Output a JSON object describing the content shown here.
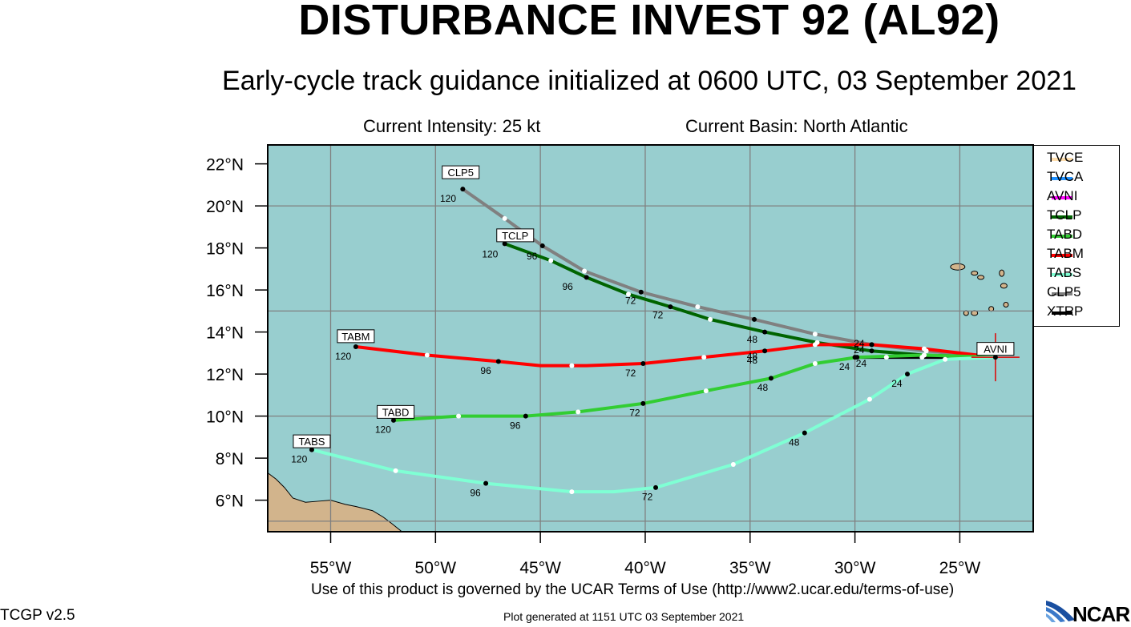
{
  "title": "DISTURBANCE INVEST 92 (AL92)",
  "subtitle": "Early-cycle track guidance initialized at 0600 UTC, 03 September 2021",
  "current_intensity": "Current Intensity: 25 kt",
  "current_basin": "Current Basin: North Atlantic",
  "terms": "Use of this product is governed by the UCAR Terms of Use (http://www2.ucar.edu/terms-of-use)",
  "generated": "Plot generated at 1151 UTC   03 September 2021",
  "version": "TCGP v2.5",
  "ncar": "NCAR",
  "colors": {
    "ocean": "#98cecf",
    "land": "#d2b48c",
    "grid": "#808080"
  },
  "chart_data": {
    "type": "line",
    "xlim": [
      -58,
      -21.5
    ],
    "ylim": [
      4.5,
      22.9
    ],
    "x_ticks": [
      {
        "value": -55,
        "label": "55°W"
      },
      {
        "value": -50,
        "label": "50°W"
      },
      {
        "value": -45,
        "label": "45°W"
      },
      {
        "value": -40,
        "label": "40°W"
      },
      {
        "value": -35,
        "label": "35°W"
      },
      {
        "value": -30,
        "label": "30°W"
      },
      {
        "value": -25,
        "label": "25°W"
      }
    ],
    "y_ticks": [
      {
        "value": 22,
        "label": "22°N"
      },
      {
        "value": 20,
        "label": "20°N"
      },
      {
        "value": 18,
        "label": "18°N"
      },
      {
        "value": 16,
        "label": "16°N"
      },
      {
        "value": 14,
        "label": "14°N"
      },
      {
        "value": 12,
        "label": "12°N"
      },
      {
        "value": 10,
        "label": "10°N"
      },
      {
        "value": 8,
        "label": "8°N"
      },
      {
        "value": 6,
        "label": "6°N"
      }
    ],
    "grid_lon": [
      -55,
      -50,
      -45,
      -40,
      -35,
      -30,
      -25
    ],
    "grid_lat": [
      20,
      15,
      10,
      5
    ],
    "current_position": {
      "lon": -23.3,
      "lat": 12.8
    },
    "legend": [
      {
        "name": "TVCE",
        "color": "#ffdead"
      },
      {
        "name": "TVCA",
        "color": "#1e90ff"
      },
      {
        "name": "AVNI",
        "color": "#ff00ff"
      },
      {
        "name": "TCLP",
        "color": "#006400"
      },
      {
        "name": "TABD",
        "color": "#32cd32"
      },
      {
        "name": "TABM",
        "color": "#ff0000"
      },
      {
        "name": "TABS",
        "color": "#7fffd4"
      },
      {
        "name": "CLP5",
        "color": "#808080"
      },
      {
        "name": "XTRP",
        "color": "#000000"
      }
    ],
    "series": [
      {
        "name": "XTRP",
        "color": "#000000",
        "points": [
          [
            -23.3,
            12.8
          ],
          [
            -25.1,
            12.8
          ],
          [
            -26.8,
            12.8
          ],
          [
            -28.5,
            12.8
          ],
          [
            -30.0,
            12.8
          ]
        ],
        "dots": [
          [
            -26.8,
            12.8,
            "w"
          ],
          [
            -28.5,
            12.8,
            "w"
          ],
          [
            -30.0,
            12.8,
            "b"
          ]
        ],
        "labels": []
      },
      {
        "name": "CLP5",
        "color": "#808080",
        "points": [
          [
            -23.3,
            12.8
          ],
          [
            -26.6,
            13.1
          ],
          [
            -29.2,
            13.4
          ],
          [
            -31.9,
            13.9
          ],
          [
            -34.8,
            14.6
          ],
          [
            -37.5,
            15.2
          ],
          [
            -40.2,
            15.9
          ],
          [
            -42.9,
            16.9
          ],
          [
            -44.9,
            18.1
          ],
          [
            -46.7,
            19.4
          ],
          [
            -48.7,
            20.8
          ]
        ],
        "dots": [
          [
            -26.6,
            13.1,
            "w"
          ],
          [
            -29.2,
            13.4,
            "b"
          ],
          [
            -31.9,
            13.9,
            "w"
          ],
          [
            -34.8,
            14.6,
            "b"
          ],
          [
            -37.5,
            15.2,
            "w"
          ],
          [
            -40.2,
            15.9,
            "b"
          ],
          [
            -42.9,
            16.9,
            "w"
          ],
          [
            -44.9,
            18.1,
            "b"
          ],
          [
            -46.7,
            19.4,
            "w"
          ],
          [
            -48.7,
            20.8,
            "b"
          ]
        ],
        "labels": [
          [
            -49.4,
            20.35,
            "120"
          ],
          [
            -34.9,
            13.65,
            "48"
          ],
          [
            -40.7,
            15.5,
            "72"
          ]
        ],
        "box": {
          "text": "CLP5",
          "lon": -48.8,
          "lat": 21.6
        }
      },
      {
        "name": "TCLP",
        "color": "#006400",
        "points": [
          [
            -23.3,
            12.8
          ],
          [
            -26.7,
            12.9
          ],
          [
            -29.2,
            13.1
          ],
          [
            -31.8,
            13.5
          ],
          [
            -34.3,
            14.0
          ],
          [
            -36.9,
            14.6
          ],
          [
            -38.8,
            15.2
          ],
          [
            -40.8,
            15.8
          ],
          [
            -42.8,
            16.6
          ],
          [
            -44.5,
            17.4
          ],
          [
            -46.7,
            18.2
          ]
        ],
        "dots": [
          [
            -26.7,
            12.9,
            "w"
          ],
          [
            -29.2,
            13.1,
            "b"
          ],
          [
            -31.8,
            13.5,
            "w"
          ],
          [
            -34.3,
            14.0,
            "b"
          ],
          [
            -36.9,
            14.6,
            "w"
          ],
          [
            -38.8,
            15.2,
            "b"
          ],
          [
            -40.8,
            15.8,
            "w"
          ],
          [
            -42.8,
            16.6,
            "b"
          ],
          [
            -44.5,
            17.4,
            "w"
          ],
          [
            -46.7,
            18.2,
            "b"
          ]
        ],
        "labels": [
          [
            -47.4,
            17.7,
            "120"
          ],
          [
            -45.4,
            17.6,
            "96"
          ],
          [
            -43.7,
            16.15,
            "96"
          ],
          [
            -39.4,
            14.8,
            "72"
          ],
          [
            -34.9,
            12.85,
            "48"
          ],
          [
            -29.8,
            13.15,
            "24"
          ]
        ],
        "box": {
          "text": "TCLP",
          "lon": -46.2,
          "lat": 18.6
        }
      },
      {
        "name": "TABM",
        "color": "#ff0000",
        "points": [
          [
            -23.3,
            12.8
          ],
          [
            -26.7,
            13.2
          ],
          [
            -29.2,
            13.4
          ],
          [
            -31.9,
            13.4
          ],
          [
            -34.3,
            13.1
          ],
          [
            -37.2,
            12.8
          ],
          [
            -40.1,
            12.5
          ],
          [
            -42.8,
            12.4
          ],
          [
            -45.0,
            12.4
          ],
          [
            -47.0,
            12.6
          ],
          [
            -50.4,
            12.9
          ],
          [
            -53.8,
            13.3
          ]
        ],
        "dots": [
          [
            -26.7,
            13.2,
            "w"
          ],
          [
            -29.2,
            13.4,
            "b"
          ],
          [
            -31.9,
            13.4,
            "w"
          ],
          [
            -34.3,
            13.1,
            "b"
          ],
          [
            -37.2,
            12.8,
            "w"
          ],
          [
            -40.1,
            12.5,
            "b"
          ],
          [
            -43.5,
            12.4,
            "w"
          ],
          [
            -47.0,
            12.6,
            "b"
          ],
          [
            -50.4,
            12.9,
            "w"
          ],
          [
            -53.8,
            13.3,
            "b"
          ]
        ],
        "labels": [
          [
            -54.4,
            12.85,
            "120"
          ],
          [
            -47.6,
            12.15,
            "96"
          ],
          [
            -40.7,
            12.05,
            "72"
          ],
          [
            -34.9,
            12.65,
            "48"
          ],
          [
            -29.8,
            13.45,
            "24"
          ]
        ],
        "box": {
          "text": "TABM",
          "lon": -53.8,
          "lat": 13.8
        }
      },
      {
        "name": "TABD",
        "color": "#32cd32",
        "points": [
          [
            -23.3,
            12.8
          ],
          [
            -26.7,
            12.9
          ],
          [
            -29.9,
            12.8
          ],
          [
            -31.9,
            12.5
          ],
          [
            -34.0,
            11.8
          ],
          [
            -37.1,
            11.2
          ],
          [
            -40.1,
            10.6
          ],
          [
            -43.2,
            10.2
          ],
          [
            -45.7,
            10.0
          ],
          [
            -48.9,
            10.0
          ],
          [
            -52.0,
            9.8
          ]
        ],
        "dots": [
          [
            -26.7,
            12.9,
            "w"
          ],
          [
            -29.9,
            12.8,
            "b"
          ],
          [
            -31.9,
            12.5,
            "w"
          ],
          [
            -34.0,
            11.8,
            "b"
          ],
          [
            -37.1,
            11.2,
            "w"
          ],
          [
            -40.1,
            10.6,
            "b"
          ],
          [
            -43.2,
            10.2,
            "w"
          ],
          [
            -45.7,
            10.0,
            "b"
          ],
          [
            -48.9,
            10.0,
            "w"
          ],
          [
            -52.0,
            9.8,
            "b"
          ]
        ],
        "labels": [
          [
            -52.5,
            9.35,
            "120"
          ],
          [
            -46.2,
            9.55,
            "96"
          ],
          [
            -40.5,
            10.15,
            "72"
          ],
          [
            -34.4,
            11.35,
            "48"
          ],
          [
            -30.5,
            12.35,
            "24"
          ],
          [
            -29.7,
            12.5,
            "24"
          ]
        ],
        "box": {
          "text": "TABD",
          "lon": -51.9,
          "lat": 10.2
        }
      },
      {
        "name": "TABS",
        "color": "#7fffd4",
        "points": [
          [
            -23.3,
            12.8
          ],
          [
            -25.7,
            12.7
          ],
          [
            -27.5,
            12.0
          ],
          [
            -29.3,
            10.8
          ],
          [
            -32.4,
            9.2
          ],
          [
            -35.8,
            7.7
          ],
          [
            -39.5,
            6.6
          ],
          [
            -41.5,
            6.4
          ],
          [
            -43.5,
            6.4
          ],
          [
            -47.6,
            6.8
          ],
          [
            -51.9,
            7.4
          ],
          [
            -55.9,
            8.4
          ]
        ],
        "dots": [
          [
            -25.7,
            12.7,
            "w"
          ],
          [
            -27.5,
            12.0,
            "b"
          ],
          [
            -29.3,
            10.8,
            "w"
          ],
          [
            -32.4,
            9.2,
            "b"
          ],
          [
            -35.8,
            7.7,
            "w"
          ],
          [
            -39.5,
            6.6,
            "b"
          ],
          [
            -43.5,
            6.4,
            "w"
          ],
          [
            -47.6,
            6.8,
            "b"
          ],
          [
            -51.9,
            7.4,
            "w"
          ],
          [
            -55.9,
            8.4,
            "b"
          ]
        ],
        "labels": [
          [
            -56.5,
            7.95,
            "120"
          ],
          [
            -48.1,
            6.35,
            "96"
          ],
          [
            -39.9,
            6.15,
            "72"
          ],
          [
            -32.9,
            8.75,
            "48"
          ],
          [
            -28.0,
            11.55,
            "24"
          ]
        ],
        "box": {
          "text": "TABS",
          "lon": -55.9,
          "lat": 8.8
        }
      }
    ],
    "avni_box": {
      "text": "AVNI",
      "lon": -23.3,
      "lat": 13.2
    }
  }
}
